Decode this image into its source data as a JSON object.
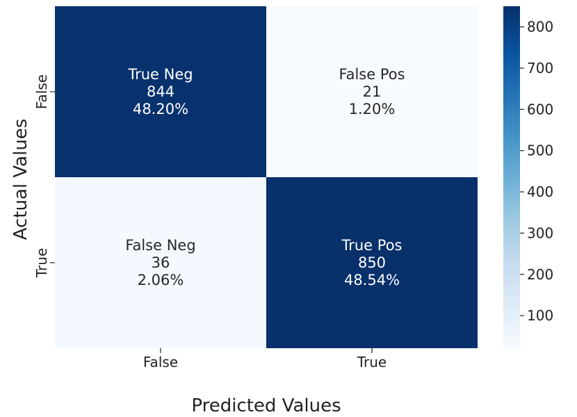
{
  "chart_data": {
    "type": "heatmap",
    "title": "",
    "xlabel": "Predicted Values",
    "ylabel": "Actual Values",
    "x_categories": [
      "False",
      "True"
    ],
    "y_categories": [
      "False",
      "True"
    ],
    "cells": [
      [
        {
          "name": "True Neg",
          "count": 844,
          "pct": "48.20%",
          "count_label": "844"
        },
        {
          "name": "False Pos",
          "count": 21,
          "pct": "1.20%",
          "count_label": "21"
        }
      ],
      [
        {
          "name": "False Neg",
          "count": 36,
          "pct": "2.06%",
          "count_label": "36"
        },
        {
          "name": "True Pos",
          "count": 850,
          "pct": "48.54%",
          "count_label": "850"
        }
      ]
    ],
    "colorbar": {
      "min": 21,
      "max": 850,
      "ticks": [
        100,
        200,
        300,
        400,
        500,
        600,
        700,
        800
      ],
      "tick_labels": [
        "100",
        "200",
        "300",
        "400",
        "500",
        "600",
        "700",
        "800"
      ]
    },
    "colormap": {
      "name": "Blues",
      "stops": [
        "#f7fbff",
        "#deebf7",
        "#c6dbef",
        "#9ecae1",
        "#6baed6",
        "#4292c6",
        "#2171b5",
        "#08519c",
        "#08306b"
      ]
    },
    "grid": false,
    "legend": "colorbar-right"
  }
}
